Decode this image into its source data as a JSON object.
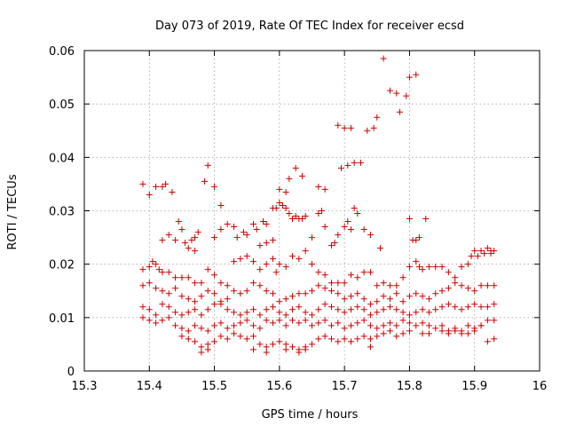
{
  "chart_data": {
    "type": "scatter",
    "title": "Day 073 of 2019, Rate Of TEC Index for receiver ecsd",
    "xlabel": "GPS time / hours",
    "ylabel": "ROTI / TECUs",
    "xlim": [
      15.3,
      16
    ],
    "ylim": [
      0,
      0.06
    ],
    "x_ticks": [
      "15.3",
      "15.4",
      "15.5",
      "15.6",
      "15.7",
      "15.8",
      "15.9",
      "16"
    ],
    "y_ticks": [
      "0",
      "0.01",
      "0.02",
      "0.03",
      "0.04",
      "0.05",
      "0.06"
    ],
    "grid": true,
    "marker": "+",
    "color": "#cc0000",
    "points": [
      [
        15.39,
        0.035
      ],
      [
        15.4,
        0.033
      ],
      [
        15.41,
        0.0345
      ],
      [
        15.42,
        0.0345
      ],
      [
        15.425,
        0.035
      ],
      [
        15.435,
        0.0335
      ],
      [
        15.485,
        0.0355
      ],
      [
        15.49,
        0.0385
      ],
      [
        15.5,
        0.0345
      ],
      [
        15.51,
        0.031
      ],
      [
        15.69,
        0.046
      ],
      [
        15.7,
        0.0455
      ],
      [
        15.71,
        0.0455
      ],
      [
        15.695,
        0.038
      ],
      [
        15.705,
        0.0385
      ],
      [
        15.715,
        0.039
      ],
      [
        15.725,
        0.039
      ],
      [
        15.735,
        0.045
      ],
      [
        15.745,
        0.0455
      ],
      [
        15.75,
        0.0475
      ],
      [
        15.76,
        0.0585
      ],
      [
        15.77,
        0.0525
      ],
      [
        15.78,
        0.052
      ],
      [
        15.785,
        0.0485
      ],
      [
        15.795,
        0.0515
      ],
      [
        15.8,
        0.055
      ],
      [
        15.81,
        0.0555
      ],
      [
        15.6,
        0.034
      ],
      [
        15.61,
        0.0335
      ],
      [
        15.615,
        0.036
      ],
      [
        15.625,
        0.038
      ],
      [
        15.635,
        0.0365
      ],
      [
        15.66,
        0.0345
      ],
      [
        15.67,
        0.034
      ],
      [
        15.42,
        0.0245
      ],
      [
        15.43,
        0.0255
      ],
      [
        15.44,
        0.0245
      ],
      [
        15.445,
        0.028
      ],
      [
        15.45,
        0.0265
      ],
      [
        15.455,
        0.024
      ],
      [
        15.46,
        0.023
      ],
      [
        15.465,
        0.0245
      ],
      [
        15.47,
        0.025
      ],
      [
        15.475,
        0.026
      ],
      [
        15.47,
        0.0225
      ],
      [
        15.5,
        0.025
      ],
      [
        15.51,
        0.0265
      ],
      [
        15.52,
        0.0275
      ],
      [
        15.53,
        0.027
      ],
      [
        15.535,
        0.025
      ],
      [
        15.545,
        0.026
      ],
      [
        15.55,
        0.0255
      ],
      [
        15.56,
        0.0275
      ],
      [
        15.565,
        0.0265
      ],
      [
        15.575,
        0.028
      ],
      [
        15.58,
        0.0275
      ],
      [
        15.59,
        0.0305
      ],
      [
        15.595,
        0.0305
      ],
      [
        15.6,
        0.0315
      ],
      [
        15.605,
        0.031
      ],
      [
        15.61,
        0.0305
      ],
      [
        15.615,
        0.0295
      ],
      [
        15.62,
        0.0285
      ],
      [
        15.625,
        0.029
      ],
      [
        15.63,
        0.0285
      ],
      [
        15.635,
        0.0285
      ],
      [
        15.64,
        0.029
      ],
      [
        15.65,
        0.025
      ],
      [
        15.66,
        0.0295
      ],
      [
        15.665,
        0.03
      ],
      [
        15.67,
        0.027
      ],
      [
        15.68,
        0.0235
      ],
      [
        15.685,
        0.024
      ],
      [
        15.69,
        0.0255
      ],
      [
        15.7,
        0.027
      ],
      [
        15.705,
        0.028
      ],
      [
        15.71,
        0.0265
      ],
      [
        15.715,
        0.0305
      ],
      [
        15.72,
        0.0295
      ],
      [
        15.73,
        0.0265
      ],
      [
        15.74,
        0.0255
      ],
      [
        15.755,
        0.023
      ],
      [
        15.8,
        0.0285
      ],
      [
        15.805,
        0.0245
      ],
      [
        15.81,
        0.0245
      ],
      [
        15.815,
        0.025
      ],
      [
        15.825,
        0.0285
      ],
      [
        15.58,
        0.024
      ],
      [
        15.59,
        0.0245
      ],
      [
        15.57,
        0.0235
      ],
      [
        15.39,
        0.019
      ],
      [
        15.4,
        0.0195
      ],
      [
        15.405,
        0.0205
      ],
      [
        15.41,
        0.02
      ],
      [
        15.415,
        0.019
      ],
      [
        15.42,
        0.0185
      ],
      [
        15.43,
        0.0185
      ],
      [
        15.44,
        0.0175
      ],
      [
        15.45,
        0.0175
      ],
      [
        15.46,
        0.0175
      ],
      [
        15.47,
        0.0165
      ],
      [
        15.48,
        0.0165
      ],
      [
        15.49,
        0.019
      ],
      [
        15.5,
        0.018
      ],
      [
        15.51,
        0.0165
      ],
      [
        15.52,
        0.016
      ],
      [
        15.53,
        0.0205
      ],
      [
        15.54,
        0.021
      ],
      [
        15.55,
        0.0215
      ],
      [
        15.56,
        0.0205
      ],
      [
        15.57,
        0.019
      ],
      [
        15.58,
        0.02
      ],
      [
        15.59,
        0.021
      ],
      [
        15.595,
        0.0185
      ],
      [
        15.6,
        0.02
      ],
      [
        15.61,
        0.0195
      ],
      [
        15.62,
        0.0215
      ],
      [
        15.63,
        0.021
      ],
      [
        15.64,
        0.0225
      ],
      [
        15.65,
        0.02
      ],
      [
        15.66,
        0.0185
      ],
      [
        15.67,
        0.018
      ],
      [
        15.68,
        0.0165
      ],
      [
        15.69,
        0.0165
      ],
      [
        15.7,
        0.0165
      ],
      [
        15.71,
        0.018
      ],
      [
        15.72,
        0.0175
      ],
      [
        15.73,
        0.0185
      ],
      [
        15.74,
        0.0185
      ],
      [
        15.75,
        0.016
      ],
      [
        15.76,
        0.0165
      ],
      [
        15.77,
        0.016
      ],
      [
        15.78,
        0.016
      ],
      [
        15.79,
        0.0175
      ],
      [
        15.8,
        0.0195
      ],
      [
        15.81,
        0.0205
      ],
      [
        15.815,
        0.0195
      ],
      [
        15.82,
        0.019
      ],
      [
        15.83,
        0.0195
      ],
      [
        15.84,
        0.0195
      ],
      [
        15.85,
        0.0195
      ],
      [
        15.86,
        0.0185
      ],
      [
        15.87,
        0.0175
      ],
      [
        15.88,
        0.0195
      ],
      [
        15.89,
        0.02
      ],
      [
        15.9,
        0.0225
      ],
      [
        15.91,
        0.0225
      ],
      [
        15.92,
        0.023
      ],
      [
        15.925,
        0.022
      ],
      [
        15.93,
        0.0225
      ],
      [
        15.895,
        0.0215
      ],
      [
        15.905,
        0.0215
      ],
      [
        15.915,
        0.022
      ],
      [
        15.925,
        0.0225
      ],
      [
        15.39,
        0.016
      ],
      [
        15.4,
        0.0165
      ],
      [
        15.41,
        0.0155
      ],
      [
        15.42,
        0.015
      ],
      [
        15.43,
        0.0145
      ],
      [
        15.44,
        0.0155
      ],
      [
        15.45,
        0.014
      ],
      [
        15.46,
        0.0135
      ],
      [
        15.47,
        0.013
      ],
      [
        15.48,
        0.014
      ],
      [
        15.49,
        0.015
      ],
      [
        15.5,
        0.0145
      ],
      [
        15.51,
        0.013
      ],
      [
        15.52,
        0.0135
      ],
      [
        15.53,
        0.015
      ],
      [
        15.54,
        0.0145
      ],
      [
        15.55,
        0.015
      ],
      [
        15.56,
        0.0165
      ],
      [
        15.57,
        0.016
      ],
      [
        15.58,
        0.015
      ],
      [
        15.59,
        0.0145
      ],
      [
        15.6,
        0.013
      ],
      [
        15.61,
        0.0135
      ],
      [
        15.62,
        0.014
      ],
      [
        15.63,
        0.0145
      ],
      [
        15.64,
        0.0145
      ],
      [
        15.65,
        0.015
      ],
      [
        15.66,
        0.016
      ],
      [
        15.67,
        0.0155
      ],
      [
        15.68,
        0.015
      ],
      [
        15.69,
        0.0145
      ],
      [
        15.7,
        0.0135
      ],
      [
        15.71,
        0.014
      ],
      [
        15.72,
        0.0145
      ],
      [
        15.73,
        0.0135
      ],
      [
        15.74,
        0.0125
      ],
      [
        15.75,
        0.013
      ],
      [
        15.76,
        0.014
      ],
      [
        15.77,
        0.0135
      ],
      [
        15.78,
        0.0145
      ],
      [
        15.79,
        0.013
      ],
      [
        15.8,
        0.014
      ],
      [
        15.81,
        0.0145
      ],
      [
        15.82,
        0.014
      ],
      [
        15.83,
        0.0135
      ],
      [
        15.84,
        0.0145
      ],
      [
        15.85,
        0.015
      ],
      [
        15.86,
        0.0155
      ],
      [
        15.87,
        0.0165
      ],
      [
        15.88,
        0.016
      ],
      [
        15.89,
        0.0155
      ],
      [
        15.9,
        0.015
      ],
      [
        15.91,
        0.016
      ],
      [
        15.92,
        0.016
      ],
      [
        15.93,
        0.016
      ],
      [
        15.39,
        0.012
      ],
      [
        15.4,
        0.0115
      ],
      [
        15.41,
        0.0105
      ],
      [
        15.42,
        0.0125
      ],
      [
        15.43,
        0.012
      ],
      [
        15.44,
        0.011
      ],
      [
        15.45,
        0.0105
      ],
      [
        15.46,
        0.011
      ],
      [
        15.47,
        0.0115
      ],
      [
        15.48,
        0.0105
      ],
      [
        15.49,
        0.0115
      ],
      [
        15.5,
        0.0125
      ],
      [
        15.51,
        0.0125
      ],
      [
        15.52,
        0.0115
      ],
      [
        15.53,
        0.011
      ],
      [
        15.54,
        0.0105
      ],
      [
        15.55,
        0.011
      ],
      [
        15.56,
        0.0115
      ],
      [
        15.57,
        0.0105
      ],
      [
        15.58,
        0.0115
      ],
      [
        15.59,
        0.012
      ],
      [
        15.6,
        0.011
      ],
      [
        15.61,
        0.0105
      ],
      [
        15.62,
        0.0115
      ],
      [
        15.63,
        0.012
      ],
      [
        15.64,
        0.011
      ],
      [
        15.65,
        0.0105
      ],
      [
        15.66,
        0.0115
      ],
      [
        15.67,
        0.0125
      ],
      [
        15.68,
        0.012
      ],
      [
        15.69,
        0.0115
      ],
      [
        15.7,
        0.011
      ],
      [
        15.71,
        0.0115
      ],
      [
        15.72,
        0.012
      ],
      [
        15.73,
        0.0115
      ],
      [
        15.74,
        0.0105
      ],
      [
        15.75,
        0.011
      ],
      [
        15.76,
        0.0115
      ],
      [
        15.77,
        0.012
      ],
      [
        15.78,
        0.0115
      ],
      [
        15.79,
        0.011
      ],
      [
        15.8,
        0.0105
      ],
      [
        15.81,
        0.011
      ],
      [
        15.82,
        0.0115
      ],
      [
        15.83,
        0.011
      ],
      [
        15.84,
        0.0115
      ],
      [
        15.85,
        0.012
      ],
      [
        15.86,
        0.0125
      ],
      [
        15.87,
        0.012
      ],
      [
        15.88,
        0.0115
      ],
      [
        15.89,
        0.012
      ],
      [
        15.9,
        0.0125
      ],
      [
        15.91,
        0.012
      ],
      [
        15.92,
        0.012
      ],
      [
        15.93,
        0.0125
      ],
      [
        15.39,
        0.01
      ],
      [
        15.4,
        0.0095
      ],
      [
        15.41,
        0.009
      ],
      [
        15.42,
        0.0095
      ],
      [
        15.43,
        0.01
      ],
      [
        15.44,
        0.0085
      ],
      [
        15.45,
        0.008
      ],
      [
        15.46,
        0.0075
      ],
      [
        15.47,
        0.0085
      ],
      [
        15.48,
        0.008
      ],
      [
        15.49,
        0.0075
      ],
      [
        15.5,
        0.0085
      ],
      [
        15.51,
        0.009
      ],
      [
        15.52,
        0.008
      ],
      [
        15.53,
        0.0085
      ],
      [
        15.54,
        0.009
      ],
      [
        15.55,
        0.0095
      ],
      [
        15.56,
        0.0085
      ],
      [
        15.57,
        0.008
      ],
      [
        15.58,
        0.0095
      ],
      [
        15.59,
        0.009
      ],
      [
        15.6,
        0.0095
      ],
      [
        15.61,
        0.0085
      ],
      [
        15.62,
        0.0095
      ],
      [
        15.63,
        0.009
      ],
      [
        15.64,
        0.0095
      ],
      [
        15.65,
        0.0085
      ],
      [
        15.66,
        0.009
      ],
      [
        15.67,
        0.0095
      ],
      [
        15.68,
        0.0085
      ],
      [
        15.69,
        0.009
      ],
      [
        15.7,
        0.008
      ],
      [
        15.71,
        0.0085
      ],
      [
        15.72,
        0.009
      ],
      [
        15.73,
        0.0095
      ],
      [
        15.74,
        0.0085
      ],
      [
        15.75,
        0.008
      ],
      [
        15.76,
        0.0085
      ],
      [
        15.77,
        0.009
      ],
      [
        15.78,
        0.0085
      ],
      [
        15.79,
        0.0095
      ],
      [
        15.8,
        0.009
      ],
      [
        15.81,
        0.0085
      ],
      [
        15.82,
        0.009
      ],
      [
        15.83,
        0.0085
      ],
      [
        15.84,
        0.008
      ],
      [
        15.85,
        0.0085
      ],
      [
        15.86,
        0.0075
      ],
      [
        15.87,
        0.008
      ],
      [
        15.88,
        0.0075
      ],
      [
        15.89,
        0.0085
      ],
      [
        15.9,
        0.008
      ],
      [
        15.91,
        0.0085
      ],
      [
        15.92,
        0.0095
      ],
      [
        15.93,
        0.0095
      ],
      [
        15.45,
        0.0065
      ],
      [
        15.46,
        0.006
      ],
      [
        15.47,
        0.0055
      ],
      [
        15.48,
        0.0045
      ],
      [
        15.49,
        0.005
      ],
      [
        15.5,
        0.0055
      ],
      [
        15.51,
        0.0065
      ],
      [
        15.52,
        0.006
      ],
      [
        15.53,
        0.007
      ],
      [
        15.54,
        0.0065
      ],
      [
        15.55,
        0.006
      ],
      [
        15.56,
        0.0065
      ],
      [
        15.57,
        0.005
      ],
      [
        15.58,
        0.0045
      ],
      [
        15.59,
        0.005
      ],
      [
        15.6,
        0.0055
      ],
      [
        15.61,
        0.005
      ],
      [
        15.62,
        0.0045
      ],
      [
        15.63,
        0.004
      ],
      [
        15.64,
        0.0045
      ],
      [
        15.65,
        0.005
      ],
      [
        15.66,
        0.006
      ],
      [
        15.67,
        0.0065
      ],
      [
        15.68,
        0.006
      ],
      [
        15.69,
        0.0055
      ],
      [
        15.7,
        0.006
      ],
      [
        15.71,
        0.0055
      ],
      [
        15.72,
        0.006
      ],
      [
        15.73,
        0.0065
      ],
      [
        15.74,
        0.006
      ],
      [
        15.75,
        0.0065
      ],
      [
        15.76,
        0.007
      ],
      [
        15.77,
        0.0075
      ],
      [
        15.78,
        0.0065
      ],
      [
        15.79,
        0.007
      ],
      [
        15.8,
        0.0075
      ],
      [
        15.82,
        0.007
      ],
      [
        15.83,
        0.007
      ],
      [
        15.85,
        0.0075
      ],
      [
        15.86,
        0.007
      ],
      [
        15.87,
        0.0075
      ],
      [
        15.88,
        0.007
      ],
      [
        15.89,
        0.007
      ],
      [
        15.9,
        0.0075
      ],
      [
        15.91,
        0.0085
      ],
      [
        15.92,
        0.0055
      ],
      [
        15.93,
        0.006
      ],
      [
        15.48,
        0.0035
      ],
      [
        15.49,
        0.004
      ],
      [
        15.56,
        0.004
      ],
      [
        15.58,
        0.0035
      ],
      [
        15.61,
        0.004
      ],
      [
        15.63,
        0.0035
      ],
      [
        15.64,
        0.004
      ],
      [
        15.74,
        0.0045
      ]
    ]
  }
}
